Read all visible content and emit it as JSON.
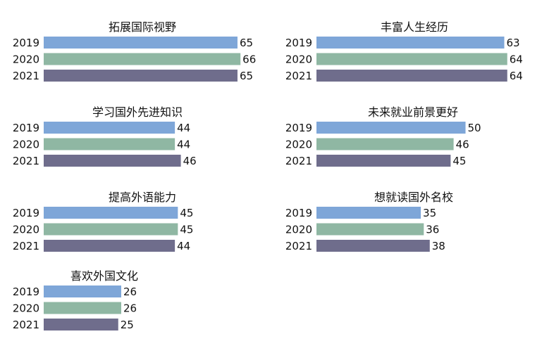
{
  "chart_data": [
    {
      "type": "bar",
      "orientation": "horizontal",
      "title": "拓展国际视野",
      "categories": [
        "2019",
        "2020",
        "2021"
      ],
      "values": [
        65,
        66,
        65
      ],
      "colors": [
        "#7ea6d8",
        "#8fb7a3",
        "#6f6d8c"
      ]
    },
    {
      "type": "bar",
      "orientation": "horizontal",
      "title": "丰富人生经历",
      "categories": [
        "2019",
        "2020",
        "2021"
      ],
      "values": [
        63,
        64,
        64
      ],
      "colors": [
        "#7ea6d8",
        "#8fb7a3",
        "#6f6d8c"
      ]
    },
    {
      "type": "bar",
      "orientation": "horizontal",
      "title": "学习国外先进知识",
      "categories": [
        "2019",
        "2020",
        "2021"
      ],
      "values": [
        44,
        44,
        46
      ],
      "colors": [
        "#7ea6d8",
        "#8fb7a3",
        "#6f6d8c"
      ]
    },
    {
      "type": "bar",
      "orientation": "horizontal",
      "title": "未来就业前景更好",
      "categories": [
        "2019",
        "2020",
        "2021"
      ],
      "values": [
        50,
        46,
        45
      ],
      "colors": [
        "#7ea6d8",
        "#8fb7a3",
        "#6f6d8c"
      ]
    },
    {
      "type": "bar",
      "orientation": "horizontal",
      "title": "提高外语能力",
      "categories": [
        "2019",
        "2020",
        "2021"
      ],
      "values": [
        45,
        45,
        44
      ],
      "colors": [
        "#7ea6d8",
        "#8fb7a3",
        "#6f6d8c"
      ]
    },
    {
      "type": "bar",
      "orientation": "horizontal",
      "title": "想就读国外名校",
      "categories": [
        "2019",
        "2020",
        "2021"
      ],
      "values": [
        35,
        36,
        38
      ],
      "colors": [
        "#7ea6d8",
        "#8fb7a3",
        "#6f6d8c"
      ]
    },
    {
      "type": "bar",
      "orientation": "horizontal",
      "title": "喜欢外国文化",
      "categories": [
        "2019",
        "2020",
        "2021"
      ],
      "values": [
        26,
        26,
        25
      ],
      "colors": [
        "#7ea6d8",
        "#8fb7a3",
        "#6f6d8c"
      ]
    }
  ]
}
